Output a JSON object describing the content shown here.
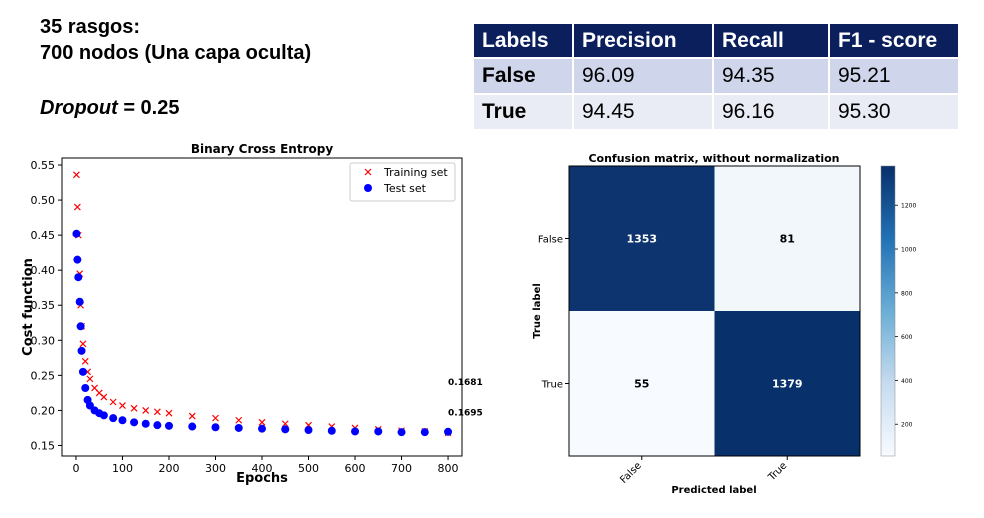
{
  "header": {
    "line1": "35 rasgos:",
    "line2": "700 nodos (Una capa oculta)",
    "dropout_label": "Dropout",
    "dropout_value": " = 0.25"
  },
  "metrics_table": {
    "headers": [
      "Labels",
      "Precision",
      "Recall",
      "F1 - score"
    ],
    "rows": [
      [
        "False",
        "96.09",
        "94.35",
        "95.21"
      ],
      [
        "True",
        "94.45",
        "96.16",
        "95.30"
      ]
    ]
  },
  "chart_data": [
    {
      "type": "scatter",
      "title": "Binary Cross Entropy",
      "xlabel": "Epochs",
      "ylabel": "Cost function",
      "xlim": [
        -30,
        830
      ],
      "ylim": [
        0.135,
        0.56
      ],
      "xticks": [
        0,
        100,
        200,
        300,
        400,
        500,
        600,
        700,
        800
      ],
      "yticks": [
        0.15,
        0.2,
        0.25,
        0.3,
        0.35,
        0.4,
        0.45,
        0.5,
        0.55
      ],
      "legend_position": "top-right",
      "series": [
        {
          "name": "Training set",
          "marker": "x",
          "color": "#ff0000",
          "x": [
            1,
            3,
            5,
            8,
            10,
            12,
            15,
            20,
            25,
            30,
            40,
            50,
            60,
            80,
            100,
            125,
            150,
            175,
            200,
            250,
            300,
            350,
            400,
            450,
            500,
            550,
            600,
            650,
            700,
            750,
            800
          ],
          "y": [
            0.536,
            0.49,
            0.45,
            0.395,
            0.35,
            0.32,
            0.295,
            0.27,
            0.255,
            0.245,
            0.232,
            0.225,
            0.219,
            0.212,
            0.207,
            0.203,
            0.2,
            0.198,
            0.196,
            0.192,
            0.189,
            0.186,
            0.183,
            0.181,
            0.179,
            0.177,
            0.175,
            0.173,
            0.171,
            0.17,
            0.168
          ]
        },
        {
          "name": "Test set",
          "marker": "o",
          "color": "#0000ff",
          "x": [
            1,
            3,
            5,
            8,
            10,
            12,
            15,
            20,
            25,
            30,
            40,
            50,
            60,
            80,
            100,
            125,
            150,
            175,
            200,
            250,
            300,
            350,
            400,
            450,
            500,
            550,
            600,
            650,
            700,
            750,
            800
          ],
          "y": [
            0.452,
            0.415,
            0.39,
            0.355,
            0.32,
            0.285,
            0.255,
            0.232,
            0.215,
            0.207,
            0.2,
            0.196,
            0.193,
            0.189,
            0.186,
            0.183,
            0.181,
            0.179,
            0.178,
            0.177,
            0.176,
            0.175,
            0.174,
            0.173,
            0.172,
            0.171,
            0.17,
            0.17,
            0.169,
            0.169,
            0.1695
          ]
        }
      ],
      "annotations": [
        {
          "text": "0.1681",
          "x": 800,
          "y": 0.236
        },
        {
          "text": "0.1695",
          "x": 800,
          "y": 0.193
        }
      ]
    },
    {
      "type": "heatmap",
      "title": "Confusion matrix, without normalization",
      "xlabel": "Predicted label",
      "ylabel": "True label",
      "x_categories": [
        "False",
        "True"
      ],
      "y_categories": [
        "False",
        "True"
      ],
      "values": [
        [
          1353,
          81
        ],
        [
          55,
          1379
        ]
      ],
      "colorbar_ticks": [
        200,
        400,
        600,
        800,
        1000,
        1200
      ],
      "colorbar_range": [
        55,
        1379
      ],
      "low_color": "#f7fbff",
      "high_color": "#08306b"
    }
  ]
}
